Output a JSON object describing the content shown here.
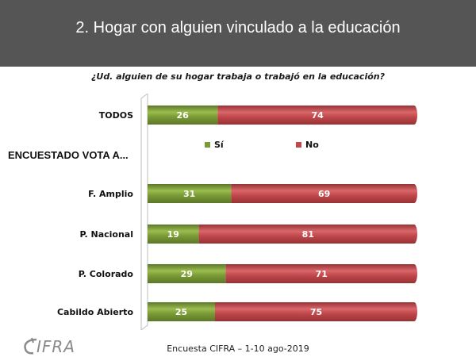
{
  "header": {
    "title": "2. Hogar con alguien vinculado a la educación"
  },
  "question": "¿Ud.  alguien de su hogar trabaja  o trabajó en la educación?",
  "footer": "Encuesta CIFRA – 1-10 ago-2019",
  "logo": {
    "text": "IFRA"
  },
  "colors": {
    "si": "#7a9a36",
    "no": "#c0474a",
    "header_bg": "#555555"
  },
  "chart_data": {
    "type": "bar",
    "orientation": "horizontal",
    "stacked": true,
    "categories": [
      "TODOS",
      "F. Amplio",
      "P. Nacional",
      "P. Colorado",
      "Cabildo Abierto"
    ],
    "group_label": "ENCUESTADO VOTA A...",
    "series": [
      {
        "name": "Sí",
        "values": [
          26,
          31,
          19,
          29,
          25
        ],
        "color": "#7a9a36"
      },
      {
        "name": "No",
        "values": [
          74,
          69,
          81,
          71,
          75
        ],
        "color": "#c0474a"
      }
    ],
    "xlim": [
      0,
      100
    ],
    "grid": false,
    "legend_position": "top-center"
  }
}
